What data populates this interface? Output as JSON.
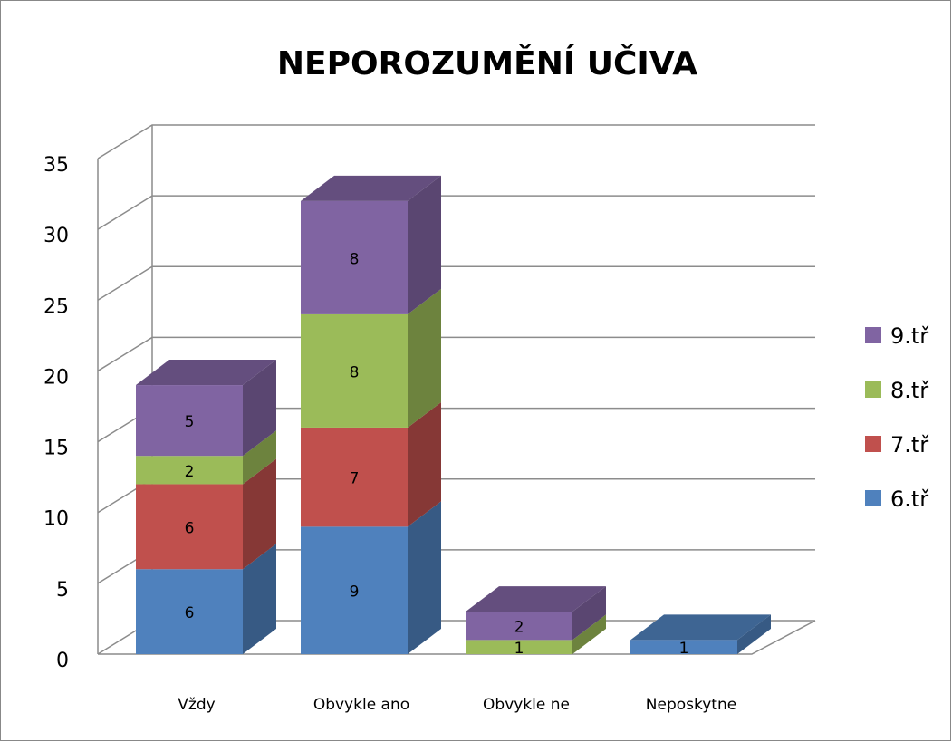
{
  "chart_data": {
    "type": "bar3d_stacked",
    "title": "NEPOROZUMĚNÍ UČIVA",
    "categories": [
      "Vždy",
      "Obvykle ano",
      "Obvykle ne",
      "Neposkytne"
    ],
    "series": [
      {
        "name": "6.tř",
        "color": "#4f81bd",
        "values": [
          6,
          9,
          0,
          1
        ]
      },
      {
        "name": "7.tř",
        "color": "#c0504d",
        "values": [
          6,
          7,
          0,
          0
        ]
      },
      {
        "name": "8.tř",
        "color": "#9bbb59",
        "values": [
          2,
          8,
          1,
          0
        ]
      },
      {
        "name": "9.tř",
        "color": "#8064a2",
        "values": [
          5,
          8,
          2,
          0
        ]
      }
    ],
    "ylim": [
      0,
      35
    ],
    "yticks": [
      0,
      5,
      10,
      15,
      20,
      25,
      30,
      35
    ],
    "grid": true,
    "legend": "right"
  }
}
